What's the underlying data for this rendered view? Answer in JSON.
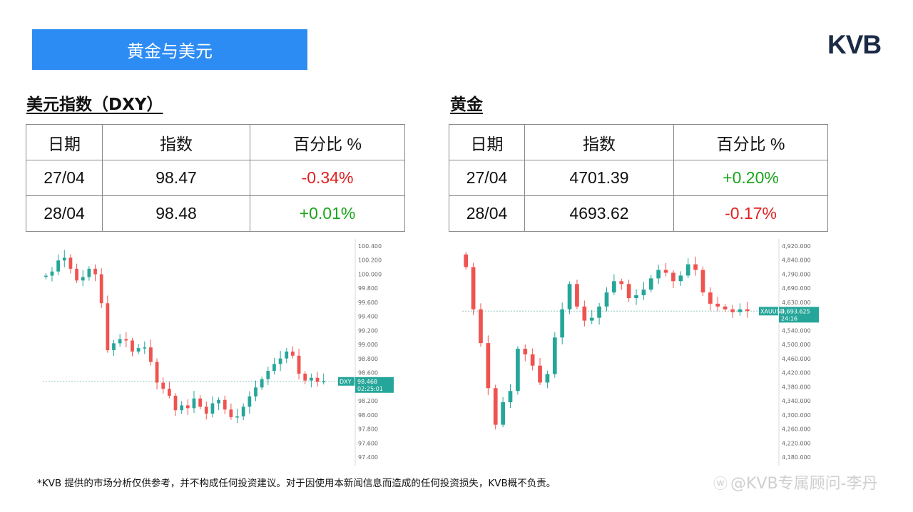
{
  "banner": {
    "title": "黄金与美元"
  },
  "logo": {
    "text": "KVB"
  },
  "dxy": {
    "title": "美元指数（DXY）",
    "headers": [
      "日期",
      "指数",
      "百分比 %"
    ],
    "rows": [
      {
        "date": "27/04",
        "index": "98.47",
        "pct": "-0.34%"
      },
      {
        "date": "28/04",
        "index": "98.48",
        "pct": "+0.01%"
      }
    ]
  },
  "gold": {
    "title": "黄金",
    "headers": [
      "日期",
      "指数",
      "百分比 %"
    ],
    "rows": [
      {
        "date": "27/04",
        "index": "4701.39",
        "pct": "+0.20%"
      },
      {
        "date": "28/04",
        "index": "4693.62",
        "pct": "-0.17%"
      }
    ]
  },
  "colors": {
    "up": "#1aa51a",
    "down": "#e02020",
    "bull_candle": "#26a69a",
    "bear_candle": "#ef5350",
    "banner": "#2d8cf4",
    "logo": "#1b2a45"
  },
  "chart_data": [
    {
      "type": "candlestick",
      "title": "",
      "ticker_label": "DXY",
      "last_price_label": "98.468",
      "countdown_label": "02:25:01",
      "y_ticks": [
        "100.400",
        "100.200",
        "100.000",
        "99.800",
        "99.600",
        "99.400",
        "99.200",
        "99.000",
        "98.800",
        "98.600",
        "98.400",
        "98.200",
        "98.000",
        "97.800",
        "97.600",
        "97.400"
      ],
      "ylim": [
        97.35,
        100.45
      ],
      "last_price": 98.468,
      "close": [
        100.0,
        100.06,
        100.22,
        100.26,
        100.1,
        99.93,
        99.98,
        100.1,
        100.02,
        99.6,
        98.92,
        99.02,
        99.08,
        99.06,
        98.9,
        98.95,
        98.96,
        98.75,
        98.45,
        98.36,
        98.26,
        98.05,
        98.12,
        98.08,
        98.22,
        98.1,
        98.0,
        98.15,
        98.2,
        98.06,
        97.95,
        97.96,
        98.1,
        98.25,
        98.38,
        98.5,
        98.62,
        98.72,
        98.8,
        98.9,
        98.84,
        98.58,
        98.48,
        98.52,
        98.46,
        98.47
      ]
    },
    {
      "type": "candlestick",
      "title": "",
      "ticker_label": "XAUUSD",
      "last_price_label": "4,693.625",
      "countdown_label": "24:16",
      "y_ticks": [
        "4,920.000",
        "4,840.000",
        "4,790.000",
        "4,690.000",
        "4,630.000",
        "4,580.000",
        "4,540.000",
        "4,500.000",
        "4,460.000",
        "4,420.000",
        "4,380.000",
        "4,340.000",
        "4,300.000",
        "4,260.000",
        "4,220.000",
        "4,180.000"
      ],
      "ylim": [
        4170,
        4930
      ],
      "last_price": 4693.625,
      "close": [
        4850,
        4700,
        4580,
        4420,
        4290,
        4370,
        4410,
        4560,
        4540,
        4500,
        4440,
        4470,
        4600,
        4700,
        4790,
        4710,
        4660,
        4670,
        4710,
        4760,
        4800,
        4790,
        4740,
        4750,
        4770,
        4810,
        4840,
        4830,
        4800,
        4820,
        4860,
        4840,
        4760,
        4720,
        4710,
        4700,
        4690,
        4700,
        4694
      ]
    }
  ],
  "disclaimer": "*KVB 提供的市场分析仅供参考，并不构成任何投资建议。对于因使用本新闻信息而造成的任何投资损失，KVB概不负责。",
  "watermark": "@KVB专属顾问-李丹"
}
